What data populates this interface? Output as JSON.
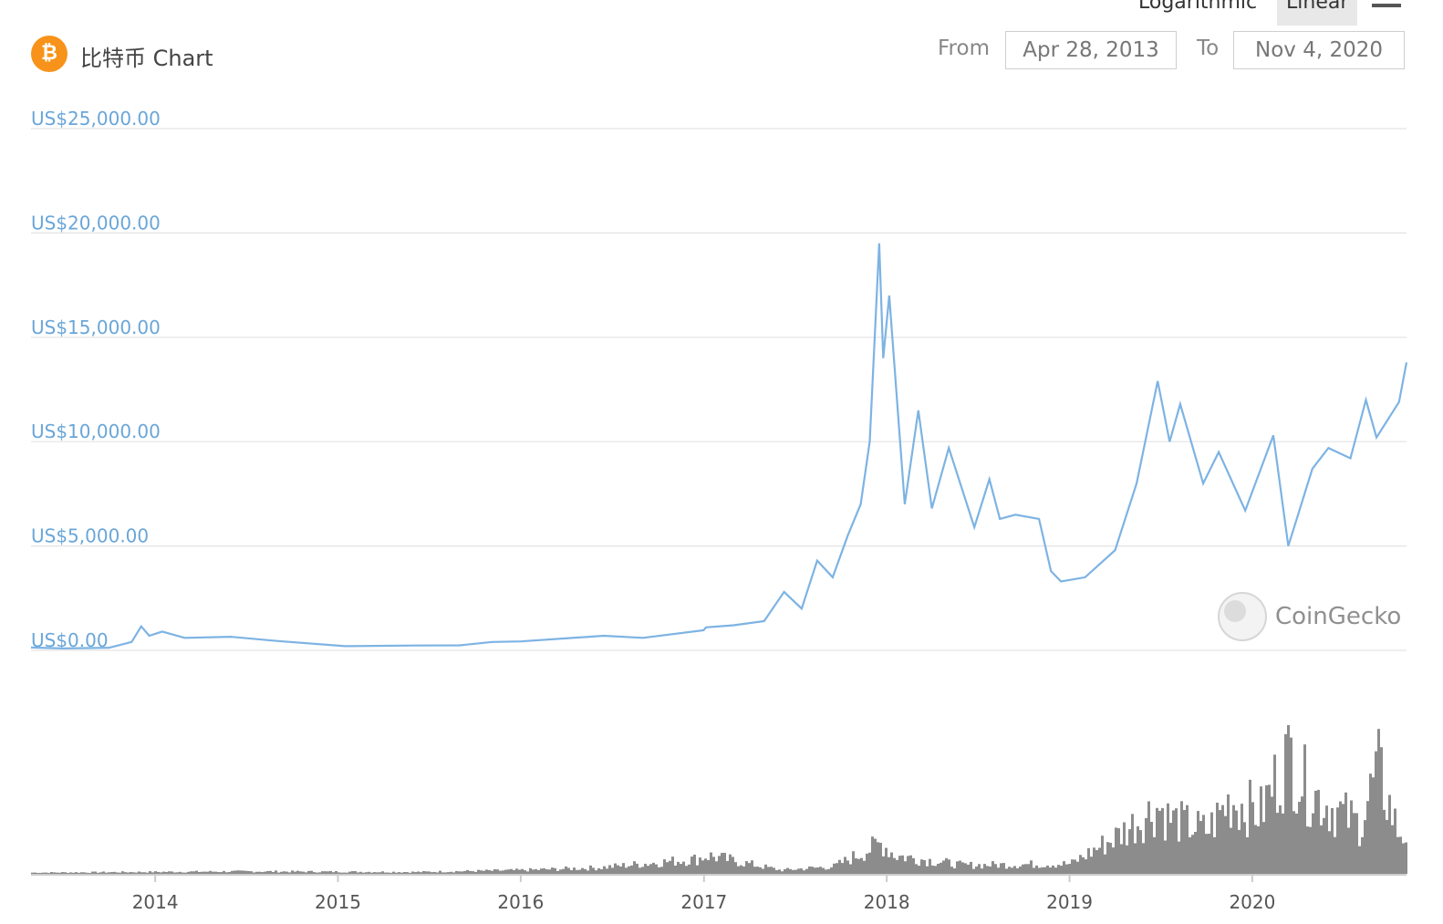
{
  "header": {
    "coin_glyph": "₿",
    "title": "比特币 Chart",
    "scale_options": [
      "Logarithmic",
      "Linear"
    ],
    "active_scale": "Linear",
    "from_label": "From",
    "from_date": "Apr 28, 2013",
    "to_label": "To",
    "to_date": "Nov 4, 2020",
    "menu_icon": "hamburger-icon"
  },
  "watermark": {
    "text": "CoinGecko",
    "icon": "gecko-logo-icon"
  },
  "colors": {
    "price_line": "#7db3e3",
    "volume_bars": "#8c8c8c",
    "coin_icon": "#f7931a"
  },
  "chart_data": {
    "type": "line",
    "title": "比特币 Chart",
    "x_range": [
      "2013-04-28",
      "2020-11-04"
    ],
    "x_ticks": [
      "2014",
      "2015",
      "2016",
      "2017",
      "2018",
      "2019",
      "2020"
    ],
    "y_ticks": [
      "US$0.00",
      "US$5,000.00",
      "US$10,000.00",
      "US$15,000.00",
      "US$20,000.00",
      "US$25,000.00"
    ],
    "ylim": [
      0,
      25000
    ],
    "grid": true,
    "series": [
      {
        "values": [
          [
            "2013-04-28",
            135
          ],
          [
            "2013-07-01",
            90
          ],
          [
            "2013-10-01",
            125
          ],
          [
            "2013-11-15",
            400
          ],
          [
            "2013-12-04",
            1150
          ],
          [
            "2013-12-20",
            700
          ],
          [
            "2014-01-15",
            900
          ],
          [
            "2014-03-01",
            600
          ],
          [
            "2014-06-01",
            650
          ],
          [
            "2014-09-01",
            450
          ],
          [
            "2015-01-15",
            200
          ],
          [
            "2015-06-01",
            230
          ],
          [
            "2015-09-01",
            240
          ],
          [
            "2015-11-05",
            400
          ],
          [
            "2016-01-01",
            430
          ],
          [
            "2016-06-15",
            700
          ],
          [
            "2016-09-01",
            600
          ],
          [
            "2016-12-31",
            960
          ],
          [
            "2017-01-05",
            1100
          ],
          [
            "2017-03-01",
            1200
          ],
          [
            "2017-05-01",
            1400
          ],
          [
            "2017-06-10",
            2800
          ],
          [
            "2017-07-15",
            2000
          ],
          [
            "2017-08-15",
            4300
          ],
          [
            "2017-09-15",
            3500
          ],
          [
            "2017-10-15",
            5500
          ],
          [
            "2017-11-10",
            7000
          ],
          [
            "2017-11-28",
            10000
          ],
          [
            "2017-12-17",
            19500
          ],
          [
            "2017-12-25",
            14000
          ],
          [
            "2018-01-06",
            17000
          ],
          [
            "2018-02-06",
            7000
          ],
          [
            "2018-03-05",
            11500
          ],
          [
            "2018-04-01",
            6800
          ],
          [
            "2018-05-05",
            9700
          ],
          [
            "2018-06-25",
            5900
          ],
          [
            "2018-07-25",
            8200
          ],
          [
            "2018-08-15",
            6300
          ],
          [
            "2018-09-15",
            6500
          ],
          [
            "2018-11-01",
            6300
          ],
          [
            "2018-11-25",
            3800
          ],
          [
            "2018-12-15",
            3300
          ],
          [
            "2019-02-01",
            3500
          ],
          [
            "2019-04-02",
            4800
          ],
          [
            "2019-05-15",
            8000
          ],
          [
            "2019-06-26",
            12900
          ],
          [
            "2019-07-20",
            10000
          ],
          [
            "2019-08-10",
            11800
          ],
          [
            "2019-09-25",
            8000
          ],
          [
            "2019-10-26",
            9500
          ],
          [
            "2019-12-18",
            6700
          ],
          [
            "2020-02-12",
            10300
          ],
          [
            "2020-03-13",
            5000
          ],
          [
            "2020-04-30",
            8700
          ],
          [
            "2020-06-01",
            9700
          ],
          [
            "2020-07-15",
            9200
          ],
          [
            "2020-08-15",
            12000
          ],
          [
            "2020-09-05",
            10200
          ],
          [
            "2020-10-20",
            11900
          ],
          [
            "2020-11-04",
            13800
          ]
        ]
      }
    ],
    "volume_series": {
      "values": [
        [
          "2013-04-28",
          0.01
        ],
        [
          "2014-07-01",
          0.02
        ],
        [
          "2015-06-01",
          0.015
        ],
        [
          "2016-01-01",
          0.03
        ],
        [
          "2016-06-01",
          0.05
        ],
        [
          "2016-12-15",
          0.12
        ],
        [
          "2017-01-05",
          0.15
        ],
        [
          "2017-06-01",
          0.03
        ],
        [
          "2017-09-15",
          0.06
        ],
        [
          "2017-12-20",
          0.25
        ],
        [
          "2018-01-15",
          0.15
        ],
        [
          "2018-06-01",
          0.07
        ],
        [
          "2018-11-20",
          0.08
        ],
        [
          "2019-01-01",
          0.08
        ],
        [
          "2019-04-01",
          0.3
        ],
        [
          "2019-06-26",
          0.55
        ],
        [
          "2019-07-15",
          0.45
        ],
        [
          "2019-10-01",
          0.35
        ],
        [
          "2019-11-15",
          0.6
        ],
        [
          "2020-01-15",
          0.5
        ],
        [
          "2020-03-13",
          1.0
        ],
        [
          "2020-04-15",
          0.7
        ],
        [
          "2020-06-01",
          0.55
        ],
        [
          "2020-08-01",
          0.4
        ],
        [
          "2020-09-05",
          0.85
        ],
        [
          "2020-10-15",
          0.35
        ],
        [
          "2020-11-04",
          0.3
        ]
      ]
    }
  }
}
